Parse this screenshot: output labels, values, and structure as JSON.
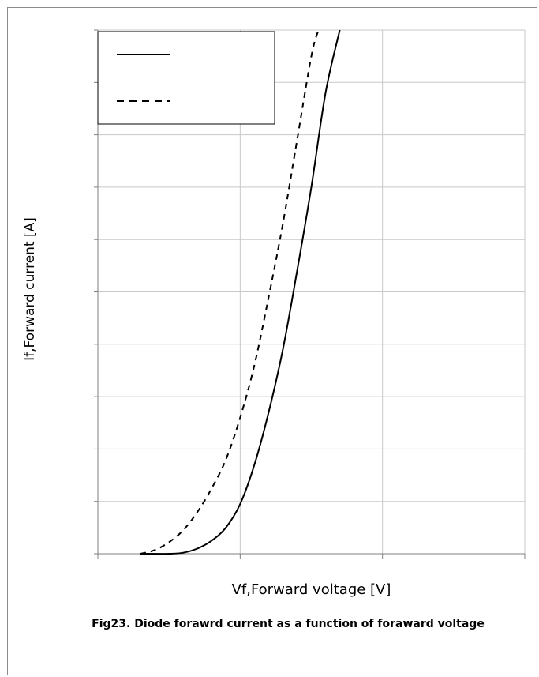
{
  "chart_data": {
    "type": "line",
    "title": "",
    "xlabel": "Vf,Forward voltage [V]",
    "ylabel": "If,Forward current [A]",
    "caption": "Fig23. Diode forawrd current as a function of foraward voltage",
    "x_tick_labels": [],
    "y_tick_labels": [],
    "xlim": [
      0,
      3
    ],
    "ylim": [
      0,
      10
    ],
    "grid": true,
    "legend_position": "top-left",
    "series": [
      {
        "style": "solid",
        "color": "#000000",
        "points": [
          [
            0.3,
            0.0
          ],
          [
            0.5,
            0.0
          ],
          [
            0.6,
            0.02
          ],
          [
            0.7,
            0.1
          ],
          [
            0.8,
            0.25
          ],
          [
            0.9,
            0.5
          ],
          [
            1.0,
            0.95
          ],
          [
            1.1,
            1.7
          ],
          [
            1.2,
            2.7
          ],
          [
            1.3,
            3.9
          ],
          [
            1.4,
            5.4
          ],
          [
            1.5,
            7.0
          ],
          [
            1.6,
            8.8
          ],
          [
            1.7,
            10.0
          ]
        ]
      },
      {
        "style": "dashed",
        "color": "#000000",
        "points": [
          [
            0.3,
            0.0
          ],
          [
            0.4,
            0.07
          ],
          [
            0.5,
            0.22
          ],
          [
            0.6,
            0.45
          ],
          [
            0.7,
            0.8
          ],
          [
            0.8,
            1.25
          ],
          [
            0.9,
            1.8
          ],
          [
            1.0,
            2.6
          ],
          [
            1.1,
            3.6
          ],
          [
            1.2,
            4.9
          ],
          [
            1.3,
            6.3
          ],
          [
            1.4,
            7.9
          ],
          [
            1.5,
            9.5
          ],
          [
            1.55,
            10.0
          ]
        ]
      }
    ]
  }
}
